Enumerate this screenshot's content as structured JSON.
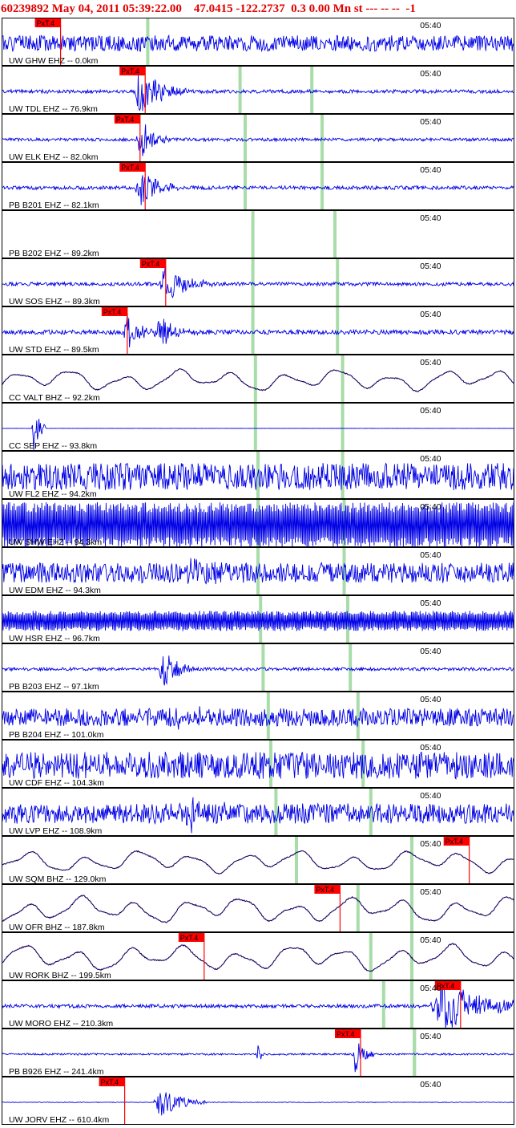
{
  "header": {
    "event_id": "60239892",
    "datetime": "May 04, 2011 05:39:22.00",
    "lat": "47.0415",
    "lon": "-122.2737",
    "magnitude": "0.3 0.00 Mn st",
    "extra": "--- -- --  -1"
  },
  "colors": {
    "trace_short_period": "#0000e6",
    "trace_broadband": "#1a0060",
    "pick_box": "#ff0000",
    "arrival_marker": "#a8dca8",
    "header_text": "#e00000"
  },
  "chart_data": {
    "type": "line",
    "title": "60239892 May 04, 2011 05:39:22.00    47.0415 -122.2737  0.3 0.00 Mn st --- -- --  -1",
    "time_tick": "05:40",
    "pick_label": "PxT.4",
    "series": [
      {
        "name": "UW GHW EHZ -- 0.0km",
        "style": "sp",
        "amp": 0.35,
        "seed": 1,
        "picks": [
          0.115
        ],
        "arrivals": [
          0.285
        ],
        "bursts": []
      },
      {
        "name": "UW TDL EHZ -- 76.9km",
        "style": "sp",
        "amp": 0.08,
        "seed": 2,
        "picks": [
          0.28
        ],
        "arrivals": [
          0.465,
          0.605
        ],
        "bursts": [
          [
            0.27,
            0.7,
            0.03
          ]
        ]
      },
      {
        "name": "UW ELK EHZ -- 82.0km",
        "style": "sp",
        "amp": 0.07,
        "seed": 3,
        "picks": [
          0.27
        ],
        "arrivals": [
          0.475,
          0.625
        ],
        "bursts": [
          [
            0.27,
            0.6,
            0.02
          ]
        ]
      },
      {
        "name": "PB B201 EHZ -- 82.1km",
        "style": "sp",
        "amp": 0.08,
        "seed": 4,
        "picks": [
          0.28
        ],
        "arrivals": [
          0.475,
          0.625
        ],
        "bursts": [
          [
            0.27,
            0.6,
            0.025
          ]
        ]
      },
      {
        "name": "PB B202 EHZ -- 89.2km",
        "style": "none",
        "amp": 0.0,
        "seed": 5,
        "picks": [],
        "arrivals": [
          0.49,
          0.65
        ],
        "bursts": []
      },
      {
        "name": "UW SOS EHZ -- 89.3km",
        "style": "sp",
        "amp": 0.08,
        "seed": 6,
        "picks": [
          0.32
        ],
        "arrivals": [
          0.49,
          0.655
        ],
        "bursts": [
          [
            0.32,
            0.55,
            0.03
          ]
        ]
      },
      {
        "name": "UW STD EHZ -- 89.5km",
        "style": "sp",
        "amp": 0.1,
        "seed": 7,
        "picks": [
          0.245
        ],
        "arrivals": [
          0.49,
          0.655
        ],
        "bursts": [
          [
            0.245,
            0.55,
            0.02
          ],
          [
            0.31,
            0.45,
            0.025
          ]
        ]
      },
      {
        "name": "CC VALT BHZ -- 92.2km",
        "style": "bb",
        "amp": 0.55,
        "seed": 8,
        "picks": [],
        "arrivals": [
          0.495,
          0.665
        ],
        "bursts": []
      },
      {
        "name": "CC SEP EHZ -- 93.8km",
        "style": "flat",
        "amp": 0.01,
        "seed": 9,
        "picks": [],
        "arrivals": [
          0.495,
          0.665
        ],
        "bursts": [
          [
            0.062,
            0.8,
            0.008
          ]
        ]
      },
      {
        "name": "UW FL2 EHZ -- 94.2km",
        "style": "sp",
        "amp": 0.6,
        "seed": 10,
        "picks": [],
        "arrivals": [
          0.5,
          0.665
        ],
        "bursts": []
      },
      {
        "name": "UW SHW EHZ -- 94.3km",
        "style": "spk",
        "amp": 1.0,
        "seed": 11,
        "picks": [],
        "arrivals": [
          0.5,
          0.668
        ],
        "bursts": []
      },
      {
        "name": "UW EDM EHZ -- 94.3km",
        "style": "sp",
        "amp": 0.45,
        "seed": 12,
        "picks": [],
        "arrivals": [
          0.5,
          0.668
        ],
        "bursts": [
          [
            0.36,
            0.4,
            0.03
          ]
        ]
      },
      {
        "name": "UW HSR EHZ -- 96.7km",
        "style": "spk2",
        "amp": 0.9,
        "seed": 13,
        "picks": [],
        "arrivals": [
          0.505,
          0.675
        ],
        "bursts": []
      },
      {
        "name": "PB B203 EHZ -- 97.1km",
        "style": "sp",
        "amp": 0.07,
        "seed": 14,
        "picks": [],
        "arrivals": [
          0.51,
          0.68
        ],
        "bursts": [
          [
            0.315,
            0.55,
            0.02
          ]
        ]
      },
      {
        "name": "PB B204 EHZ -- 101.0km",
        "style": "sp",
        "amp": 0.4,
        "seed": 15,
        "picks": [],
        "arrivals": [
          0.52,
          0.695
        ],
        "bursts": [
          [
            0.34,
            0.35,
            0.03
          ]
        ]
      },
      {
        "name": "UW CDF EHZ -- 104.3km",
        "style": "sp",
        "amp": 0.6,
        "seed": 16,
        "picks": [],
        "arrivals": [
          0.525,
          0.705
        ],
        "bursts": []
      },
      {
        "name": "UW LVP EHZ -- 108.9km",
        "style": "sp",
        "amp": 0.45,
        "seed": 17,
        "picks": [],
        "arrivals": [
          0.535,
          0.72
        ],
        "bursts": [
          [
            0.37,
            0.4,
            0.03
          ]
        ]
      },
      {
        "name": "UW SQM BHZ -- 129.0km",
        "style": "bb",
        "amp": 0.55,
        "seed": 18,
        "picks": [
          0.912
        ],
        "arrivals": [
          0.575,
          0.8
        ],
        "bursts": []
      },
      {
        "name": "UW OFR BHZ -- 187.8km",
        "style": "bb",
        "amp": 0.65,
        "seed": 19,
        "picks": [
          0.66
        ],
        "arrivals": [
          0.695,
          0.8
        ],
        "bursts": []
      },
      {
        "name": "UW RORK BHZ -- 199.5km",
        "style": "bb",
        "amp": 0.65,
        "seed": 20,
        "picks": [
          0.395
        ],
        "arrivals": [
          0.72,
          0.8
        ],
        "bursts": []
      },
      {
        "name": "UW MORO EHZ -- 210.3km",
        "style": "sp",
        "amp": 0.08,
        "seed": 21,
        "picks": [
          0.895
        ],
        "arrivals": [
          0.745,
          0.8
        ],
        "bursts": [
          [
            0.865,
            0.7,
            0.06
          ]
        ]
      },
      {
        "name": "PB B926 EHZ -- 241.4km",
        "style": "sp",
        "amp": 0.04,
        "seed": 22,
        "picks": [
          0.7
        ],
        "arrivals": [
          0.805,
          0.805
        ],
        "bursts": [
          [
            0.5,
            0.45,
            0.004
          ],
          [
            0.69,
            0.6,
            0.012
          ]
        ]
      },
      {
        "name": "UW JORV EHZ -- 610.4km",
        "style": "flat",
        "amp": 0.03,
        "seed": 23,
        "picks": [
          0.24
        ],
        "arrivals": [],
        "bursts": [
          [
            0.31,
            0.45,
            0.03
          ]
        ]
      }
    ]
  }
}
